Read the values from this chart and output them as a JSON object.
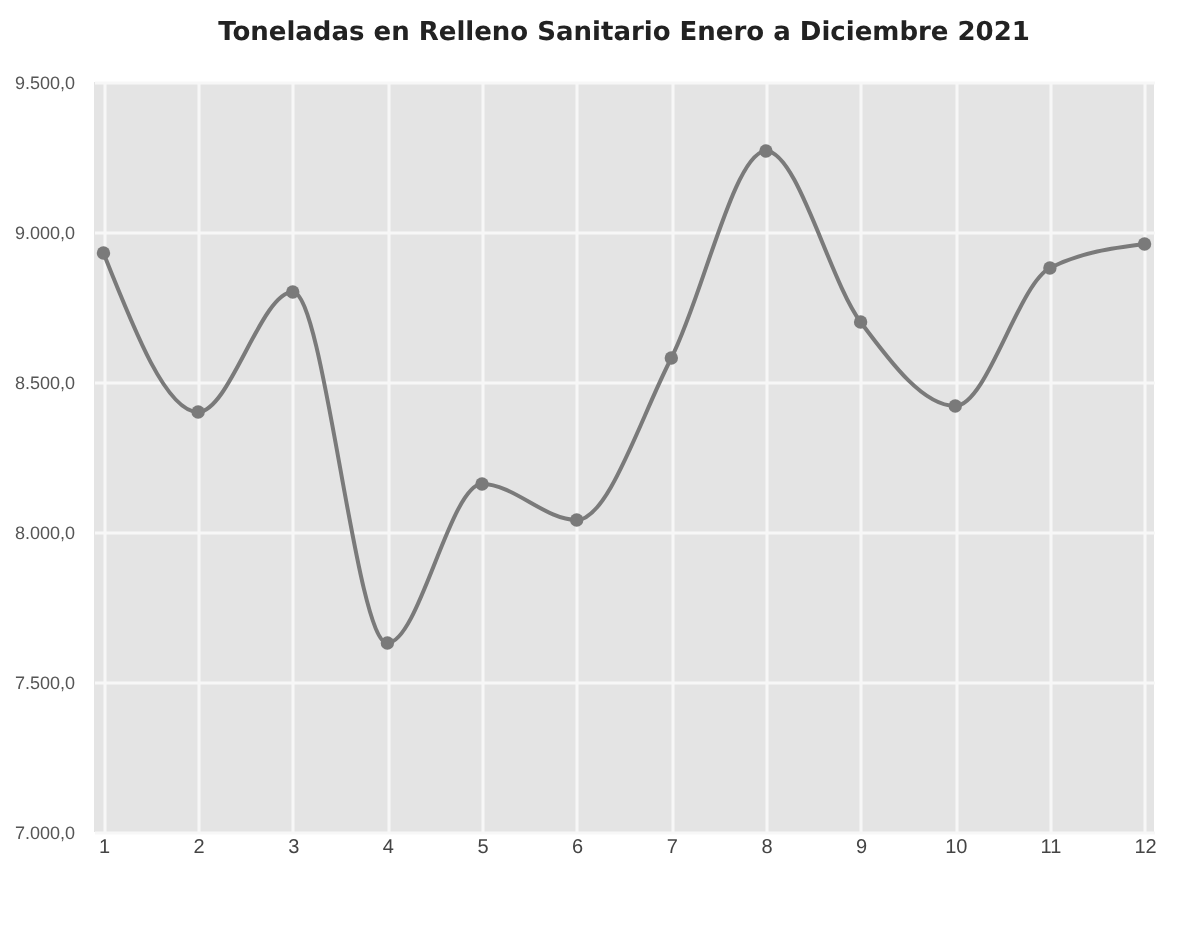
{
  "chart_data": {
    "type": "line",
    "title": "Toneladas en Relleno Sanitario Enero a Diciembre 2021",
    "x": [
      1,
      2,
      3,
      4,
      5,
      6,
      7,
      8,
      9,
      10,
      11,
      12
    ],
    "series": [
      {
        "color": "#7a7a7a",
        "values": [
          8930,
          8400,
          8800,
          7630,
          8160,
          8040,
          8580,
          9270,
          8700,
          8420,
          8880,
          8960
        ]
      }
    ],
    "xlim": [
      0.9,
      12.1
    ],
    "xticks": [
      1,
      2,
      3,
      4,
      5,
      6,
      7,
      8,
      9,
      10,
      11,
      12
    ],
    "ylim": [
      7000,
      9500
    ],
    "yticks": [
      {
        "value": 7000,
        "label": "7.000,0"
      },
      {
        "value": 7500,
        "label": "7.500,0"
      },
      {
        "value": 8000,
        "label": "8.000,0"
      },
      {
        "value": 8500,
        "label": "8.500,0"
      },
      {
        "value": 9000,
        "label": "9.000,0"
      },
      {
        "value": 9500,
        "label": "9.500,0"
      }
    ],
    "grid": true,
    "marker": "circle",
    "line_style": "solid"
  }
}
